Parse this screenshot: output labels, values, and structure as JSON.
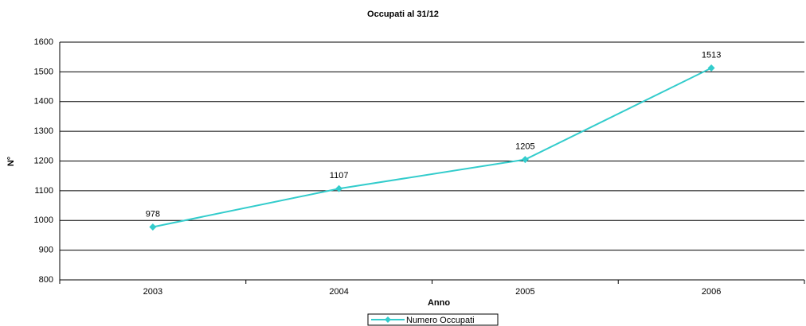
{
  "chart_data": {
    "type": "line",
    "title": "Occupati al 31/12",
    "x_label": "Anno",
    "y_label": "N°",
    "categories": [
      "2003",
      "2004",
      "2005",
      "2006"
    ],
    "series": [
      {
        "name": "Numero Occupati",
        "color": "#33cccc",
        "values": [
          978,
          1107,
          1205,
          1513
        ]
      }
    ],
    "ylim": [
      800,
      1600
    ],
    "yticks": [
      800,
      900,
      1000,
      1100,
      1200,
      1300,
      1400,
      1500,
      1600
    ],
    "grid": true,
    "legend": "bottom"
  }
}
